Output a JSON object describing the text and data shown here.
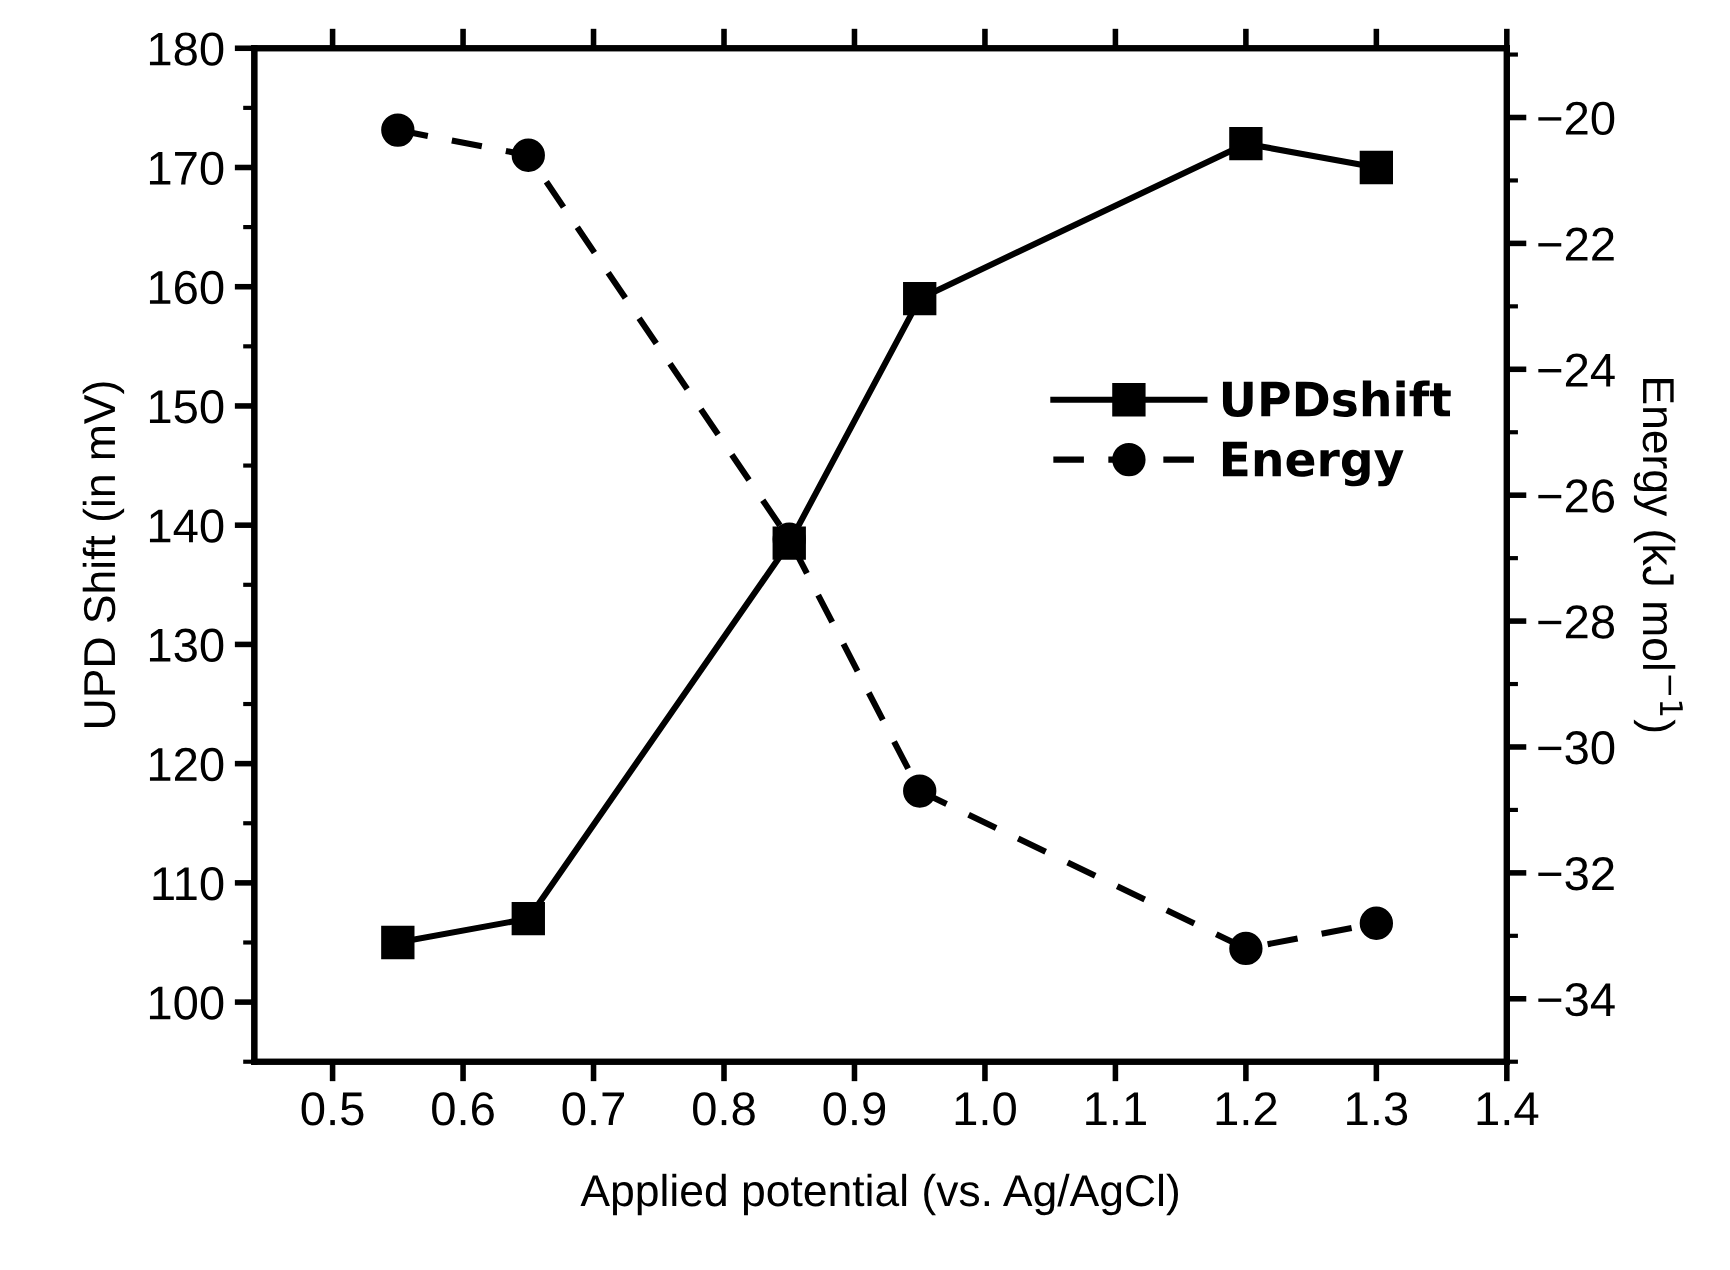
{
  "chart_data": {
    "type": "line",
    "xlabel": "Applied potential (vs. Ag/AgCl)",
    "ylabel": "UPD Shift (in mV)",
    "y2label": "Energy (kJ mol$^{−1}$)",
    "x": [
      0.55,
      0.65,
      0.85,
      0.95,
      1.2,
      1.3
    ],
    "series": [
      {
        "name": "UPDshift",
        "color": "#000000",
        "marker": "square",
        "line_style": "solid",
        "values": [
          105,
          107,
          138.5,
          159,
          172,
          170
        ]
      },
      {
        "name": "Energy",
        "color": "#000000",
        "marker": "circle",
        "line_style": "dashed",
        "axis": "y2",
        "values": [
          -20.2,
          -20.6,
          -26.7,
          -30.7,
          -33.2,
          -32.8
        ]
      }
    ],
    "xlim": [
      0.44,
      1.4
    ],
    "xticks": [
      {
        "value": 0.5,
        "label": "0.5"
      },
      {
        "value": 0.6,
        "label": "0.6"
      },
      {
        "value": 0.7,
        "label": "0.7"
      },
      {
        "value": 0.8,
        "label": "0.8"
      },
      {
        "value": 0.9,
        "label": "0.9"
      },
      {
        "value": 1.0,
        "label": "1.0"
      },
      {
        "value": 1.1,
        "label": "1.1"
      },
      {
        "value": 1.2,
        "label": "1.2"
      },
      {
        "value": 1.3,
        "label": "1.3"
      },
      {
        "value": 1.4,
        "label": "1.4"
      }
    ],
    "ylim": [
      95,
      180
    ],
    "yticks": [
      100,
      110,
      120,
      130,
      140,
      150,
      160,
      170,
      180
    ],
    "y2lim": [
      -35,
      -18.9
    ],
    "y2ticks": [
      -34,
      -32,
      -30,
      -28,
      -26,
      -24,
      -22,
      -20
    ],
    "grid": false,
    "legend": "right"
  }
}
